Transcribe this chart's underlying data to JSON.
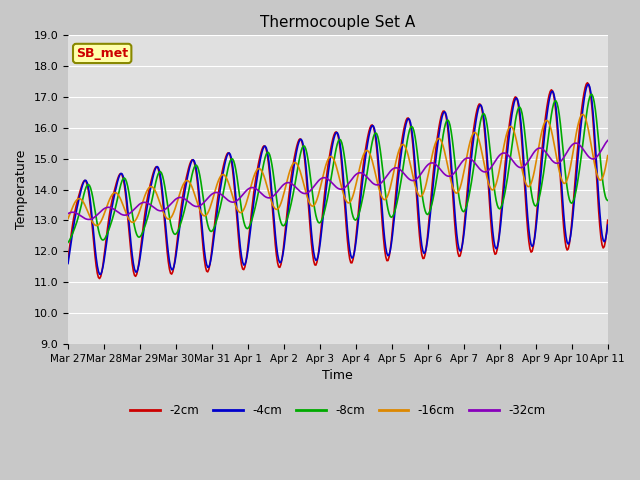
{
  "title": "Thermocouple Set A",
  "xlabel": "Time",
  "ylabel": "Temperature",
  "ylim": [
    9.0,
    19.0
  ],
  "yticks": [
    9.0,
    10.0,
    11.0,
    12.0,
    13.0,
    14.0,
    15.0,
    16.0,
    17.0,
    18.0,
    19.0
  ],
  "fig_bg_color": "#c8c8c8",
  "plot_bg_color": "#e0e0e0",
  "series": {
    "-2cm": {
      "color": "#cc0000",
      "lw": 1.2
    },
    "-4cm": {
      "color": "#0000cc",
      "lw": 1.2
    },
    "-8cm": {
      "color": "#00aa00",
      "lw": 1.2
    },
    "-16cm": {
      "color": "#dd8800",
      "lw": 1.2
    },
    "-32cm": {
      "color": "#8800bb",
      "lw": 1.2
    }
  },
  "annotation_text": "SB_met",
  "annotation_color": "#cc0000",
  "annotation_bg": "#ffffaa",
  "annotation_border": "#888800",
  "x_labels": [
    "Mar 27",
    "Mar 28",
    "Mar 29",
    "Mar 30",
    "Mar 31",
    "Apr 1",
    "Apr 2",
    "Apr 3",
    "Apr 4",
    "Apr 5",
    "Apr 6",
    "Apr 7",
    "Apr 8",
    "Apr 9",
    "Apr 10",
    "Apr 11"
  ],
  "x_tick_pos": [
    0,
    1,
    2,
    3,
    4,
    5,
    6,
    7,
    8,
    9,
    10,
    11,
    12,
    13,
    14,
    15
  ]
}
